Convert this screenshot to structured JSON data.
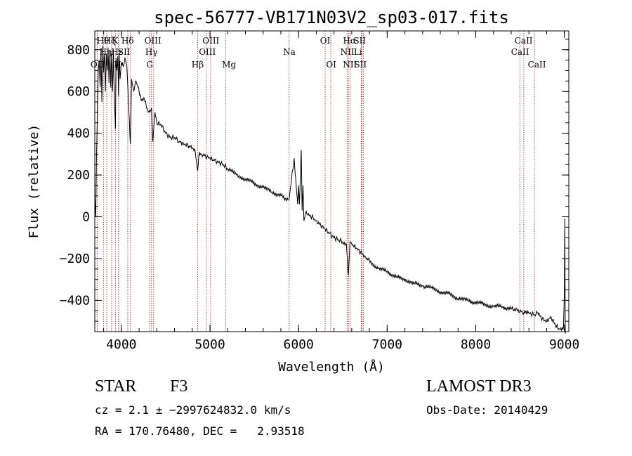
{
  "chart_data": {
    "type": "line",
    "title": "spec-56777-VB171N03V2_sp03-017.fits",
    "xlabel": "Wavelength (Å)",
    "ylabel": "Flux (relative)",
    "xlim": [
      3700,
      9050
    ],
    "ylim": [
      -550,
      890
    ],
    "xticks": [
      4000,
      5000,
      6000,
      7000,
      8000,
      9000
    ],
    "yticks": [
      -400,
      -200,
      0,
      200,
      400,
      600,
      800
    ],
    "xtick_labels": [
      "4000",
      "5000",
      "6000",
      "7000",
      "8000",
      "9000"
    ],
    "ytick_labels": [
      "−400",
      "−200",
      "0",
      "200",
      "400",
      "600",
      "800"
    ],
    "series": [
      {
        "name": "flux",
        "x": [
          3700,
          3710,
          3720,
          3730,
          3740,
          3750,
          3760,
          3770,
          3780,
          3790,
          3800,
          3810,
          3820,
          3830,
          3840,
          3850,
          3860,
          3870,
          3880,
          3890,
          3900,
          3910,
          3920,
          3933,
          3940,
          3950,
          3960,
          3968,
          3975,
          3985,
          4000,
          4020,
          4040,
          4060,
          4080,
          4101,
          4115,
          4140,
          4160,
          4180,
          4200,
          4230,
          4260,
          4290,
          4320,
          4340,
          4355,
          4380,
          4400,
          4450,
          4500,
          4550,
          4600,
          4650,
          4700,
          4750,
          4800,
          4830,
          4861,
          4880,
          4900,
          4950,
          5000,
          5050,
          5100,
          5150,
          5200,
          5300,
          5400,
          5500,
          5600,
          5700,
          5800,
          5890,
          5900,
          5950,
          5990,
          6000,
          6010,
          6030,
          6040,
          6050,
          6060,
          6080,
          6100,
          6150,
          6200,
          6250,
          6300,
          6350,
          6400,
          6450,
          6500,
          6540,
          6563,
          6580,
          6600,
          6650,
          6700,
          6750,
          6800,
          6900,
          7000,
          7100,
          7200,
          7300,
          7400,
          7500,
          7600,
          7700,
          7800,
          7900,
          8000,
          8100,
          8200,
          8300,
          8400,
          8498,
          8542,
          8600,
          8662,
          8700,
          8750,
          8800,
          8850,
          8900,
          8950,
          8990,
          9000,
          9005,
          9010
        ],
        "y": [
          90,
          0,
          300,
          520,
          700,
          750,
          620,
          800,
          550,
          820,
          690,
          780,
          600,
          780,
          700,
          810,
          640,
          800,
          620,
          780,
          600,
          800,
          560,
          420,
          760,
          700,
          770,
          580,
          780,
          660,
          740,
          720,
          760,
          730,
          560,
          350,
          660,
          600,
          650,
          630,
          600,
          560,
          560,
          520,
          500,
          520,
          360,
          500,
          450,
          440,
          400,
          380,
          380,
          360,
          350,
          340,
          330,
          320,
          220,
          310,
          300,
          290,
          280,
          270,
          260,
          250,
          230,
          200,
          180,
          160,
          140,
          120,
          100,
          80,
          110,
          280,
          60,
          150,
          60,
          320,
          30,
          150,
          -20,
          20,
          10,
          0,
          -20,
          -40,
          -60,
          -80,
          -100,
          -110,
          -120,
          -130,
          -280,
          -120,
          -130,
          -150,
          -170,
          -190,
          -210,
          -250,
          -260,
          -290,
          -300,
          -320,
          -330,
          -340,
          -360,
          -370,
          -390,
          -400,
          -410,
          -420,
          -430,
          -430,
          -440,
          -450,
          -460,
          -460,
          -470,
          -460,
          -490,
          -500,
          -480,
          -520,
          -540,
          -530,
          -350,
          -10,
          -560
        ]
      }
    ],
    "lines": [
      {
        "name": "OII",
        "x": 3727,
        "label_row": 3,
        "label_x": 3728
      },
      {
        "name": "Hθ",
        "x": 3798,
        "label_row": 1,
        "label_x": 3790
      },
      {
        "name": "Hη",
        "x": 3835,
        "label_row": 2,
        "label_x": 3822
      },
      {
        "name": "Hζ",
        "x": 3889,
        "label_row": 1,
        "label_x": 3868
      },
      {
        "name": "K",
        "x": 3933,
        "label_row": 1,
        "label_x": 3930
      },
      {
        "name": "H",
        "x": 3968,
        "label_row": 3,
        "label_x": 3958
      },
      {
        "name": "Hε",
        "x": 3970,
        "label_row": 2,
        "label_x": 3952
      },
      {
        "name": "SII",
        "x": 4072,
        "label_row": 2,
        "label_x": 4030
      },
      {
        "name": "Hδ",
        "x": 4102,
        "label_row": 1,
        "label_x": 4070
      },
      {
        "name": "OIII",
        "x": 4320,
        "label_row": 1,
        "label_x": 4355
      },
      {
        "name": "Hγ",
        "x": 4340,
        "label_row": 2,
        "label_x": 4340
      },
      {
        "name": "G",
        "x": 4364,
        "label_row": 3,
        "label_x": 4320
      },
      {
        "name": "Hβ",
        "x": 4861,
        "label_row": 3,
        "label_x": 4861
      },
      {
        "name": "OIII",
        "x": 4959,
        "label_row": 2,
        "label_x": 4970
      },
      {
        "name": "OIII",
        "x": 5007,
        "label_row": 1,
        "label_x": 5010
      },
      {
        "name": "Mg",
        "x": 5176,
        "label_row": 3,
        "label_x": 5215
      },
      {
        "name": "Na",
        "x": 5893,
        "label_row": 2,
        "label_x": 5895
      },
      {
        "name": "OI",
        "x": 6300,
        "label_row": 1,
        "label_x": 6300
      },
      {
        "name": "OI",
        "x": 6363,
        "label_row": 3,
        "label_x": 6368
      },
      {
        "name": "NII",
        "x": 6548,
        "label_row": 2,
        "label_x": 6550
      },
      {
        "name": "Hα",
        "x": 6563,
        "label_row": 1,
        "label_x": 6575
      },
      {
        "name": "NII",
        "x": 6583,
        "label_row": 3,
        "label_x": 6580
      },
      {
        "name": "Li",
        "x": 6708,
        "label_row": 2,
        "label_x": 6670
      },
      {
        "name": "SII",
        "x": 6716,
        "label_row": 1,
        "label_x": 6690
      },
      {
        "name": "SII",
        "x": 6731,
        "label_row": 3,
        "label_x": 6698
      },
      {
        "name": "CaII",
        "x": 8498,
        "label_row": 2,
        "label_x": 8500
      },
      {
        "name": "CaII",
        "x": 8542,
        "label_row": 1,
        "label_x": 8540
      },
      {
        "name": "CaII",
        "x": 8662,
        "label_row": 3,
        "label_x": 8690
      }
    ]
  },
  "info": {
    "class": "STAR",
    "subclass": "F3",
    "survey": "LAMOST DR3",
    "redshift": "cz = 2.1 ± −2997624832.0 km/s",
    "obsdate": "Obs-Date: 20140429",
    "coords": "RA = 170.76480, DEC =   2.93518"
  },
  "colors": {
    "line_marker": "#aa2222",
    "axis": "#000000",
    "spectrum": "#000000"
  }
}
